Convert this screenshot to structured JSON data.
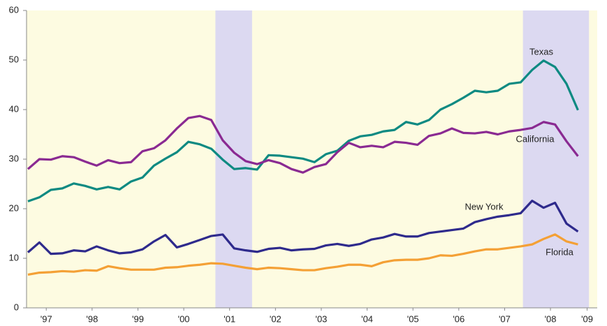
{
  "chart_data": {
    "type": "line",
    "x": [
      1997,
      1997.25,
      1997.5,
      1997.75,
      1998,
      1998.25,
      1998.5,
      1998.75,
      1999,
      1999.25,
      1999.5,
      1999.75,
      2000,
      2000.25,
      2000.5,
      2000.75,
      2001,
      2001.25,
      2001.5,
      2001.75,
      2002,
      2002.25,
      2002.5,
      2002.75,
      2003,
      2003.25,
      2003.5,
      2003.75,
      2004,
      2004.25,
      2004.5,
      2004.75,
      2005,
      2005.25,
      2005.5,
      2005.75,
      2006,
      2006.25,
      2006.5,
      2006.75,
      2007,
      2007.25,
      2007.5,
      2007.75,
      2008,
      2008.25,
      2008.5,
      2008.75,
      2009
    ],
    "series": [
      {
        "name": "Texas",
        "color": "#0e8a82",
        "values": [
          21.5,
          22.3,
          23.8,
          24.1,
          25.1,
          24.6,
          23.9,
          24.4,
          23.9,
          25.5,
          26.3,
          28.7,
          30.1,
          31.4,
          33.5,
          33.0,
          32.1,
          29.9,
          28.0,
          28.2,
          27.9,
          30.8,
          30.7,
          30.4,
          30.1,
          29.4,
          31.0,
          31.7,
          33.7,
          34.6,
          34.9,
          35.6,
          35.9,
          37.5,
          37.0,
          37.9,
          40.0,
          41.1,
          42.4,
          43.8,
          43.5,
          43.8,
          45.2,
          45.5,
          48.0,
          49.9,
          48.6,
          45.2,
          39.9
        ]
      },
      {
        "name": "California",
        "color": "#8a2a92",
        "values": [
          28.0,
          30.0,
          29.9,
          30.6,
          30.4,
          29.5,
          28.7,
          29.8,
          29.2,
          29.4,
          31.6,
          32.2,
          33.8,
          36.2,
          38.3,
          38.7,
          37.9,
          33.8,
          31.3,
          29.6,
          29.0,
          29.8,
          29.2,
          28.0,
          27.3,
          28.4,
          29.0,
          31.4,
          33.3,
          32.4,
          32.7,
          32.4,
          33.5,
          33.3,
          32.9,
          34.7,
          35.2,
          36.2,
          35.3,
          35.2,
          35.5,
          35.0,
          35.6,
          35.9,
          36.3,
          37.5,
          37.0,
          33.6,
          30.6
        ]
      },
      {
        "name": "New York",
        "color": "#2e2a8c",
        "values": [
          11.2,
          13.2,
          10.9,
          11.0,
          11.6,
          11.4,
          12.4,
          11.6,
          11.0,
          11.2,
          11.8,
          13.4,
          14.7,
          12.2,
          12.9,
          13.7,
          14.5,
          14.8,
          12.0,
          11.6,
          11.3,
          11.9,
          12.1,
          11.6,
          11.8,
          11.9,
          12.6,
          12.9,
          12.5,
          12.9,
          13.8,
          14.2,
          14.9,
          14.4,
          14.4,
          15.1,
          15.4,
          15.7,
          16.0,
          17.3,
          17.9,
          18.4,
          18.7,
          19.1,
          21.6,
          20.2,
          21.2,
          17.0,
          15.4
        ]
      },
      {
        "name": "Florida",
        "color": "#f4a035",
        "values": [
          6.7,
          7.1,
          7.2,
          7.4,
          7.3,
          7.6,
          7.5,
          8.4,
          8.0,
          7.7,
          7.7,
          7.7,
          8.1,
          8.2,
          8.5,
          8.7,
          9.0,
          8.9,
          8.5,
          8.1,
          7.8,
          8.1,
          8.0,
          7.8,
          7.6,
          7.6,
          8.0,
          8.3,
          8.7,
          8.7,
          8.4,
          9.2,
          9.6,
          9.7,
          9.7,
          10.0,
          10.6,
          10.5,
          10.9,
          11.4,
          11.8,
          11.8,
          12.1,
          12.4,
          12.8,
          13.9,
          14.8,
          13.4,
          12.8
        ]
      }
    ],
    "shaded_bands": [
      [
        2001.09,
        2001.89
      ],
      [
        2007.8,
        2009.24
      ]
    ],
    "xlim": [
      1996.97,
      2009.42
    ],
    "xticks": [
      {
        "value": 1997.4,
        "label": "'97"
      },
      {
        "value": 1998.4,
        "label": "'98"
      },
      {
        "value": 1999.4,
        "label": "'99"
      },
      {
        "value": 2000.4,
        "label": "'00"
      },
      {
        "value": 2001.4,
        "label": "'01"
      },
      {
        "value": 2002.4,
        "label": "'02"
      },
      {
        "value": 2003.4,
        "label": "'03"
      },
      {
        "value": 2004.4,
        "label": "'04"
      },
      {
        "value": 2005.4,
        "label": "'05"
      },
      {
        "value": 2006.4,
        "label": "'06"
      },
      {
        "value": 2007.4,
        "label": "'07"
      },
      {
        "value": 2008.4,
        "label": "'08"
      },
      {
        "value": 2009.2,
        "label": "'09"
      }
    ],
    "ylim": [
      0,
      60
    ],
    "yticks": [
      0,
      10,
      20,
      30,
      40,
      50,
      60
    ],
    "grid": false
  }
}
